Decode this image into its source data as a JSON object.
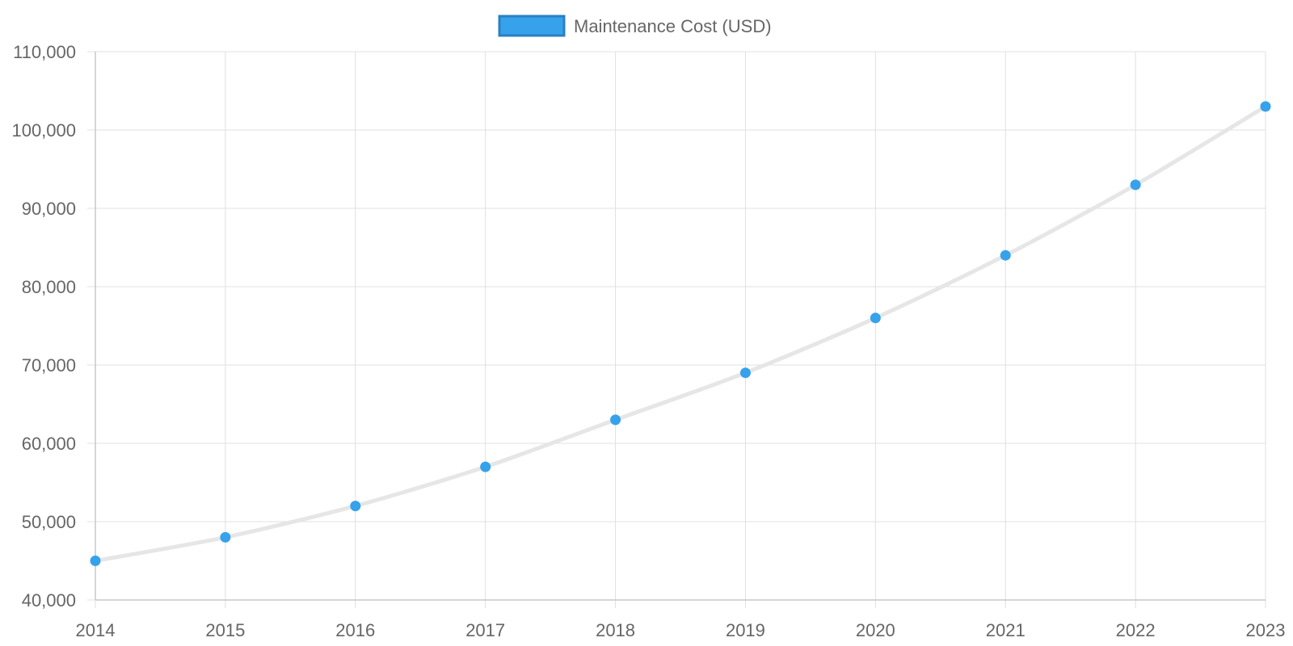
{
  "chart_data": {
    "type": "line",
    "x": [
      "2014",
      "2015",
      "2016",
      "2017",
      "2018",
      "2019",
      "2020",
      "2021",
      "2022",
      "2023"
    ],
    "series": [
      {
        "name": "Maintenance Cost (USD)",
        "values": [
          45000,
          48000,
          52000,
          57000,
          63000,
          69000,
          76000,
          84000,
          93000,
          103000
        ],
        "line_color": "#e6e6e6",
        "point_color": "#36a2eb"
      }
    ],
    "title": "",
    "xlabel": "",
    "ylabel": "",
    "ylim": [
      40000,
      110000
    ],
    "y_ticks": [
      "40,000",
      "50,000",
      "60,000",
      "70,000",
      "80,000",
      "90,000",
      "100,000",
      "110,000"
    ],
    "grid": true,
    "legend_position": "top",
    "colors": {
      "grid": "#e0e0e0",
      "axis": "#c8c8c8",
      "tick_text": "#666666",
      "legend_swatch_fill": "#36a2eb",
      "legend_swatch_border": "#2b7fc0"
    }
  }
}
